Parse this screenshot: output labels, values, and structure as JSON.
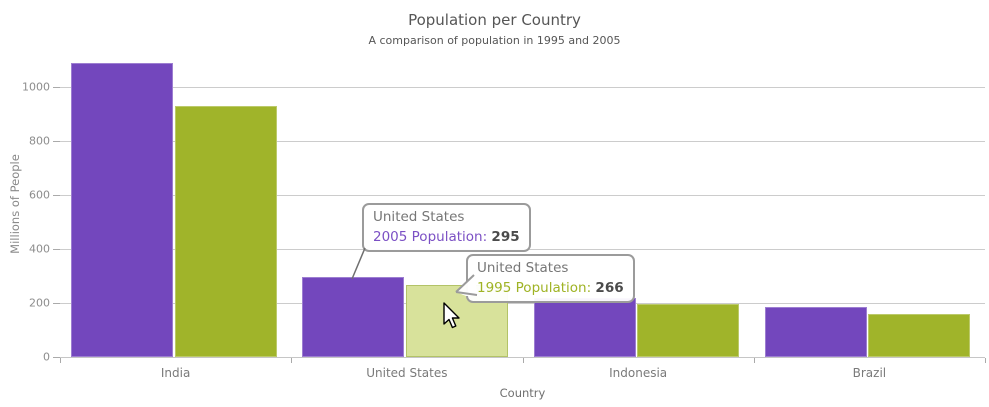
{
  "title": "Population per Country",
  "subtitle": "A comparison of population in 1995 and 2005",
  "chart_data": {
    "type": "bar",
    "title": "Population per Country",
    "subtitle": "A comparison of population in 1995 and 2005",
    "xlabel": "Country",
    "ylabel": "Millions of People",
    "categories": [
      "India",
      "United States",
      "Indonesia",
      "Brazil"
    ],
    "series": [
      {
        "name": "2005 Population",
        "color": "#7347bd",
        "values": [
          1090,
          295,
          220,
          184
        ]
      },
      {
        "name": "1995 Population",
        "color": "#a0b42a",
        "values": [
          929,
          266,
          197,
          161
        ]
      }
    ],
    "yticks": [
      0,
      200,
      400,
      600,
      800,
      1000
    ],
    "ylim": [
      0,
      1100
    ],
    "grid": true,
    "legend": "none",
    "highlight": {
      "category": "United States",
      "series": "1995 Population",
      "color": "#d8e29b"
    }
  },
  "tooltips": [
    {
      "title": "United States",
      "series_label": "2005 Population:",
      "value": "295",
      "series_color": "#7b50c4"
    },
    {
      "title": "United States",
      "series_label": "1995 Population:",
      "value": "266",
      "series_color": "#9fb324"
    }
  ],
  "colors": {
    "grid": "#cccccc",
    "axis": "#c6c6c6",
    "tick": "#aaaaaa",
    "title_text": "#565656",
    "axis_text": "#8d8d8d",
    "category_text": "#7a7a7a",
    "tooltip_border": "#9b9b9b",
    "tooltip_title": "#767676",
    "tooltip_value": "#4b4b4b"
  }
}
